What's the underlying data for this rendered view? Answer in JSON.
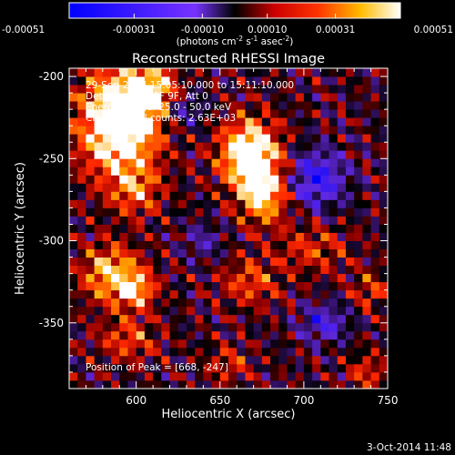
{
  "chart_data": {
    "type": "heatmap",
    "title": "Reconstructed RHESSI Image",
    "xlabel": "Heliocentric X (arcsec)",
    "ylabel": "Heliocentric Y (arcsec)",
    "xlim": [
      560,
      750
    ],
    "ylim": [
      -390,
      -195
    ],
    "x_ticks": [
      600,
      650,
      700,
      750
    ],
    "y_ticks": [
      -200,
      -250,
      -300,
      -350
    ],
    "colorbar": {
      "position": "top",
      "min": -0.00051,
      "max": 0.00051,
      "tick_values": [
        -0.00051,
        -0.00031,
        -0.0001,
        0.0001,
        0.00031,
        0.00051
      ],
      "tick_labels": [
        "-0.00051",
        "-0.00031",
        "-0.00010",
        "0.00010",
        "0.00031",
        "0.00051"
      ],
      "unit_text": "(photons cm",
      "unit_sup1": "-2",
      "unit_mid1": " s",
      "unit_sup2": "-1",
      "unit_mid2": " asec",
      "unit_sup3": "-2",
      "unit_end": ")"
    },
    "annotations": [
      "29-Sep-2014 15:05:10.000 to 15:11:10.000",
      "Detectors: 3F 6F 9F, Att 0",
      "Energy Range: 25.0 - 50.0 keV",
      "Clean    Total counts: 2.63E+03"
    ],
    "peak_label": "Position of Peak = [668, -247]",
    "peak": [
      668,
      -247
    ],
    "grid": false,
    "sources": [
      {
        "x": 590,
        "y": -228,
        "amp": 0.00072,
        "sx": 16,
        "sy": 22
      },
      {
        "x": 610,
        "y": -208,
        "amp": 0.0004,
        "sx": 10,
        "sy": 10
      },
      {
        "x": 668,
        "y": -247,
        "amp": 0.00066,
        "sx": 12,
        "sy": 14
      },
      {
        "x": 676,
        "y": -272,
        "amp": 0.00045,
        "sx": 10,
        "sy": 12
      },
      {
        "x": 585,
        "y": -320,
        "amp": 0.00042,
        "sx": 12,
        "sy": 12
      },
      {
        "x": 600,
        "y": -330,
        "amp": 0.00036,
        "sx": 8,
        "sy": 8
      },
      {
        "x": 600,
        "y": -270,
        "amp": 0.00026,
        "sx": 10,
        "sy": 10
      },
      {
        "x": 668,
        "y": -325,
        "amp": 0.00024,
        "sx": 12,
        "sy": 10
      },
      {
        "x": 705,
        "y": -305,
        "amp": 0.0002,
        "sx": 15,
        "sy": 10
      },
      {
        "x": 595,
        "y": -360,
        "amp": 0.00024,
        "sx": 12,
        "sy": 9
      },
      {
        "x": 740,
        "y": -330,
        "amp": 0.0002,
        "sx": 8,
        "sy": 8
      },
      {
        "x": 738,
        "y": -380,
        "amp": 0.0002,
        "sx": 8,
        "sy": 8
      },
      {
        "x": 655,
        "y": -375,
        "amp": 0.00018,
        "sx": 9,
        "sy": 8
      },
      {
        "x": 708,
        "y": -262,
        "amp": -0.0004,
        "sx": 12,
        "sy": 12
      },
      {
        "x": 712,
        "y": -350,
        "amp": -0.0003,
        "sx": 10,
        "sy": 8
      },
      {
        "x": 628,
        "y": -220,
        "amp": -0.00022,
        "sx": 8,
        "sy": 8
      },
      {
        "x": 640,
        "y": -300,
        "amp": -0.00018,
        "sx": 8,
        "sy": 8
      }
    ]
  },
  "footer_timestamp": "3-Oct-2014 11:48"
}
